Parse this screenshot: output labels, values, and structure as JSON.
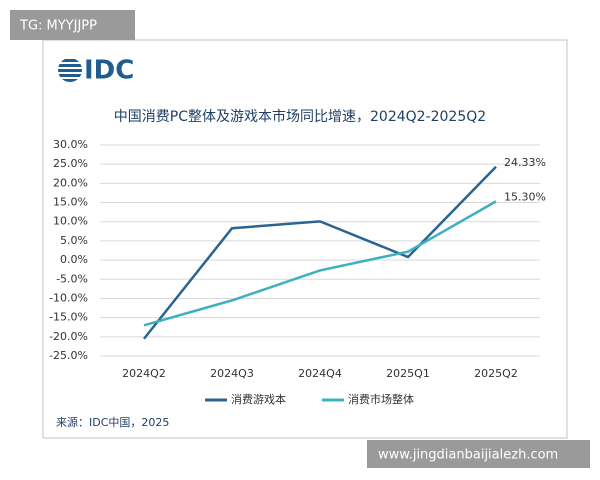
{
  "watermark_top": "TG: MYYJJPP",
  "watermark_bottom": "www.jingdianbaijialezh.com",
  "logo": "IDC",
  "source": "来源：IDC中国，2025",
  "chart_data": {
    "type": "line",
    "title": "中国消费PC整体及游戏本市场同比增速，2024Q2-2025Q2",
    "categories": [
      "2024Q2",
      "2024Q3",
      "2024Q4",
      "2025Q1",
      "2025Q2"
    ],
    "series": [
      {
        "name": "消费游戏本",
        "color": "#2b6391",
        "values": [
          -20.5,
          8.3,
          10.1,
          0.8,
          24.33
        ],
        "value_labels": [
          null,
          null,
          null,
          null,
          "24.33%"
        ]
      },
      {
        "name": "消费市场整体",
        "color": "#3fb0be",
        "values": [
          -17,
          -10.5,
          -2.7,
          2.2,
          15.3
        ],
        "value_labels": [
          null,
          null,
          null,
          null,
          "15.30%"
        ]
      }
    ],
    "ylim": [
      -25,
      30
    ],
    "yticks": [
      {
        "value": 30,
        "label": "30.0%"
      },
      {
        "value": 25,
        "label": "25.0%"
      },
      {
        "value": 20,
        "label": "20.0%"
      },
      {
        "value": 15,
        "label": "15.0%"
      },
      {
        "value": 10,
        "label": "10.0%"
      },
      {
        "value": 5,
        "label": "5.0%"
      },
      {
        "value": 0,
        "label": "0.0%"
      },
      {
        "value": -5,
        "label": "-5.0%"
      },
      {
        "value": -10,
        "label": "-10.0%"
      },
      {
        "value": -15,
        "label": "-15.0%"
      },
      {
        "value": -20,
        "label": "-20.0%"
      },
      {
        "value": -25,
        "label": "-25.0%"
      }
    ],
    "grid": true
  }
}
